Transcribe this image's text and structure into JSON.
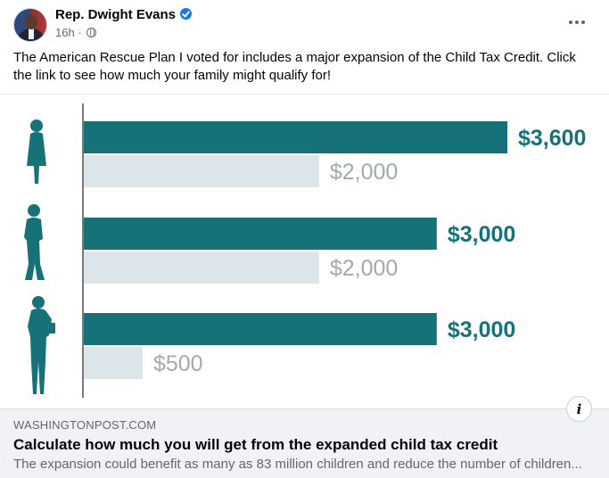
{
  "post": {
    "author": "Rep. Dwight Evans",
    "time": "16h",
    "separator": "·",
    "icons": {
      "verified": "verified-badge-icon",
      "audience": "globe-icon",
      "more": "more-options-icon"
    },
    "text": "The American Rescue Plan I voted for includes a major expansion of the Child Tax Credit. Click the link to see how much your family might qualify for!"
  },
  "chart_data": {
    "type": "bar",
    "orientation": "horizontal",
    "categories": [
      "young child",
      "child",
      "teen"
    ],
    "series": [
      {
        "values": [
          3600,
          3000,
          3000
        ],
        "labels": [
          "$3,600",
          "$3,000",
          "$3,000"
        ],
        "color": "#167179"
      },
      {
        "values": [
          2000,
          2000,
          500
        ],
        "labels": [
          "$2,000",
          "$2,000",
          "$500"
        ],
        "color": "#dbe5ea"
      }
    ],
    "xlim": [
      0,
      3600
    ],
    "icons": [
      "girl-silhouette-icon",
      "boy-silhouette-icon",
      "teen-silhouette-icon"
    ],
    "colors": {
      "primary": "#167179",
      "secondary": "#dbe5ea",
      "secondary_label": "#a3a9ad",
      "axis": "#7a7a7a"
    }
  },
  "link_preview": {
    "domain": "WASHINGTONPOST.COM",
    "title": "Calculate how much you will get from the expanded child tax credit",
    "description": "The expansion could benefit as many as 83 million children and reduce the number of children...",
    "info_icon": "info-icon",
    "info_label": "i"
  }
}
